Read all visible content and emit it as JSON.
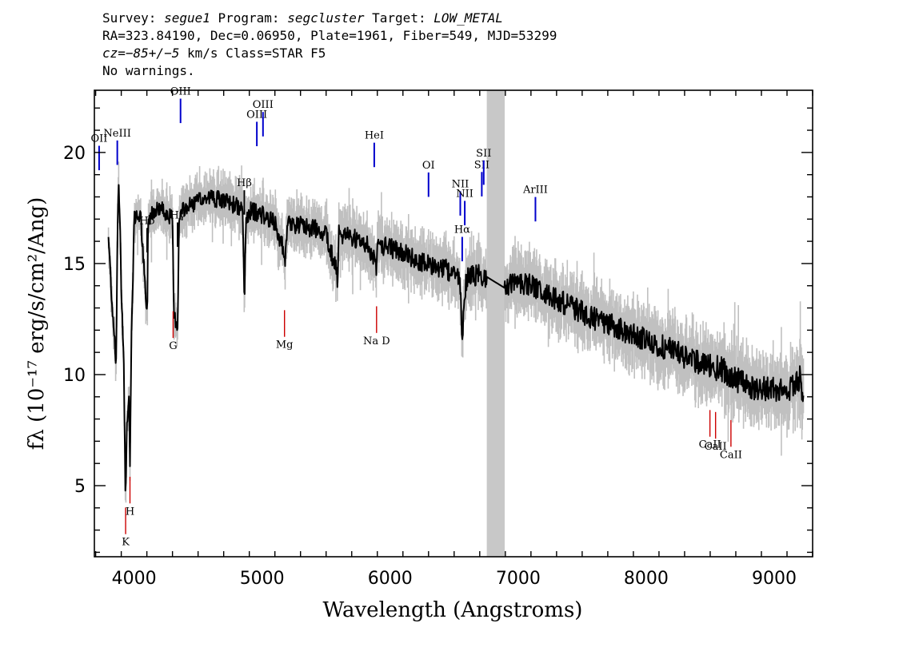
{
  "header": {
    "line1": {
      "survey_key": "Survey: ",
      "survey": "segue1",
      "program_key": " Program: ",
      "program": "segcluster",
      "target_key": " Target: ",
      "target": "LOW_METAL"
    },
    "line2": "RA=323.84190, Dec=0.06950, Plate=1961, Fiber=549, MJD=53299",
    "line3": {
      "cz_key": "cz",
      "cz_value": "=−85+/−5",
      "rest": " km/s Class=STAR F5"
    },
    "line4": "No warnings."
  },
  "colors": {
    "flux": "#000000",
    "error": "#c0c0c0",
    "emission": "#0000cc",
    "absorption": "#cc0000",
    "telluric_band": "#c8c8c8"
  },
  "chart_data": {
    "type": "line",
    "xlabel": "Wavelength (Angstroms)",
    "ylabel": "fλ (10⁻¹⁷ erg/s/cm²/Ang)",
    "xlim": [
      3690,
      9300
    ],
    "ylim": [
      1.8,
      22.8
    ],
    "x_ticks": [
      4000,
      5000,
      6000,
      7000,
      8000,
      9000
    ],
    "y_ticks": [
      5,
      10,
      15,
      20
    ],
    "grid": false,
    "masked_band": [
      6755,
      6895
    ],
    "series": [
      {
        "x": [
          3800,
          3830,
          3850,
          3860,
          3870,
          3880,
          3890,
          3900,
          3920,
          3933,
          3945,
          3960,
          3968,
          3980,
          3990,
          4000,
          4050,
          4102,
          4110,
          4150,
          4200,
          4250,
          4300,
          4310,
          4340,
          4350,
          4360,
          4400,
          4500,
          4600,
          4700,
          4800,
          4850,
          4861,
          4875,
          4900,
          5000,
          5100,
          5167,
          5175,
          5183,
          5200,
          5300,
          5400,
          5500,
          5577,
          5590,
          5600,
          5700,
          5800,
          5880,
          5892,
          5900,
          6000,
          6100,
          6200,
          6300,
          6400,
          6500,
          6540,
          6555,
          6563,
          6575,
          6600,
          6700,
          6755,
          6895,
          7000,
          7100,
          7200,
          7300,
          7400,
          7500,
          7600,
          7700,
          7800,
          7900,
          8000,
          8100,
          8200,
          8300,
          8400,
          8500,
          8600,
          8700,
          8800,
          8900,
          9000,
          9100,
          9200,
          9230
        ],
        "y": [
          16.2,
          13.0,
          11.5,
          10.4,
          16.5,
          18.5,
          17.0,
          14.0,
          10.5,
          4.2,
          8.0,
          9.0,
          5.9,
          12.0,
          14.0,
          17.0,
          17.2,
          12.5,
          17.0,
          17.4,
          17.5,
          17.3,
          17.0,
          12.7,
          12.2,
          16.5,
          17.2,
          17.5,
          17.8,
          18.0,
          17.8,
          17.6,
          17.3,
          13.1,
          17.0,
          17.4,
          17.2,
          16.8,
          15.6,
          14.9,
          15.2,
          16.8,
          16.7,
          16.6,
          16.4,
          14.7,
          14.3,
          16.3,
          16.2,
          16.0,
          15.2,
          14.8,
          15.9,
          15.7,
          15.5,
          15.2,
          15.0,
          14.8,
          14.6,
          14.3,
          13.0,
          11.0,
          13.4,
          14.4,
          14.5,
          14.4,
          13.9,
          14.2,
          14.0,
          13.7,
          13.4,
          13.1,
          12.8,
          12.5,
          12.3,
          12.0,
          11.8,
          11.6,
          11.3,
          11.1,
          10.8,
          10.6,
          10.4,
          10.2,
          9.8,
          9.5,
          9.3,
          9.4,
          9.2,
          9.8,
          8.9
        ]
      }
    ],
    "emission_lines": [
      {
        "label": "OII",
        "wave": 3727
      },
      {
        "label": "NeIII",
        "wave": 3869
      },
      {
        "label": "OIII",
        "wave": 4363
      },
      {
        "label": "OIII",
        "wave": 4959
      },
      {
        "label": "OIII",
        "wave": 5007
      },
      {
        "label": "HeI",
        "wave": 5876
      },
      {
        "label": "OI",
        "wave": 6300
      },
      {
        "label": "NII",
        "wave": 6548
      },
      {
        "label": "Hα",
        "wave": 6563
      },
      {
        "label": "NII",
        "wave": 6583
      },
      {
        "label": "SII",
        "wave": 6716
      },
      {
        "label": "SII",
        "wave": 6731
      },
      {
        "label": "ArIII",
        "wave": 7135
      }
    ],
    "balmer_lines": [
      {
        "label": "Hδ",
        "wave": 4102
      },
      {
        "label": "Hγ",
        "wave": 4340
      },
      {
        "label": "Hβ",
        "wave": 4861
      }
    ],
    "absorption_lines": [
      {
        "label": "K",
        "wave": 3934
      },
      {
        "label": "H",
        "wave": 3968
      },
      {
        "label": "G",
        "wave": 4305
      },
      {
        "label": "Mg",
        "wave": 5175
      },
      {
        "label": "Na D",
        "wave": 5894
      },
      {
        "label": "CaII",
        "wave": 8498
      },
      {
        "label": "CaII",
        "wave": 8542
      },
      {
        "label": "CaII",
        "wave": 8662
      }
    ]
  }
}
